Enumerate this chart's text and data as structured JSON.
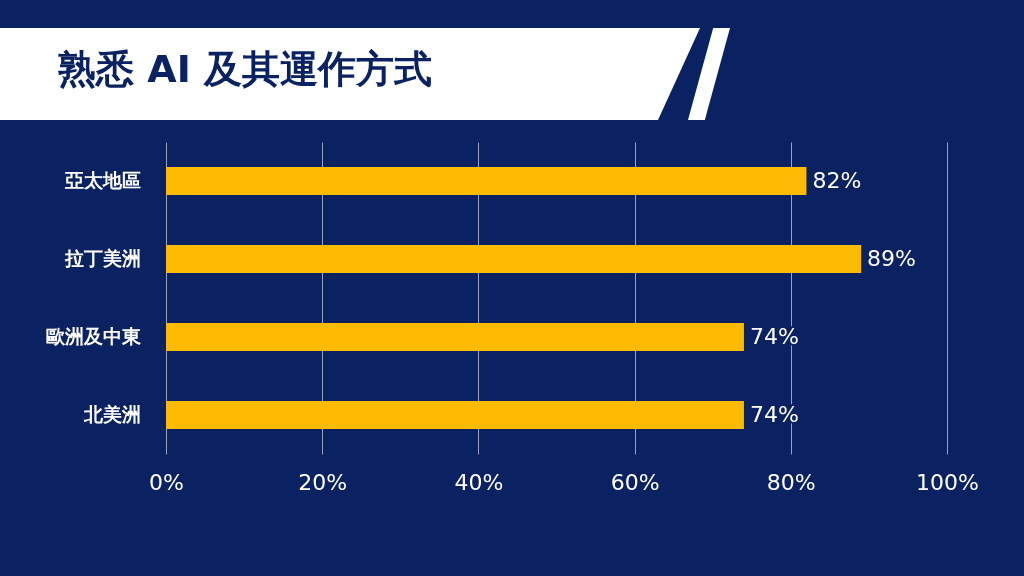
{
  "chart_data": {
    "type": "bar",
    "orientation": "horizontal",
    "title": "熟悉 AI 及其運作方式",
    "categories": [
      "亞太地區",
      "拉丁美洲",
      "歐洲及中東",
      "北美洲"
    ],
    "values": [
      82,
      89,
      74,
      74
    ],
    "color": "#febb02",
    "value_labels": [
      "82%",
      "89%",
      "74%",
      "74%"
    ],
    "xlim": [
      0,
      100
    ],
    "xticks": [
      {
        "value": 0,
        "label": "0%"
      },
      {
        "value": 20,
        "label": "20%"
      },
      {
        "value": 40,
        "label": "40%"
      },
      {
        "value": 60,
        "label": "60%"
      },
      {
        "value": 80,
        "label": "80%"
      },
      {
        "value": 100,
        "label": "100%"
      }
    ],
    "grid": "x"
  }
}
